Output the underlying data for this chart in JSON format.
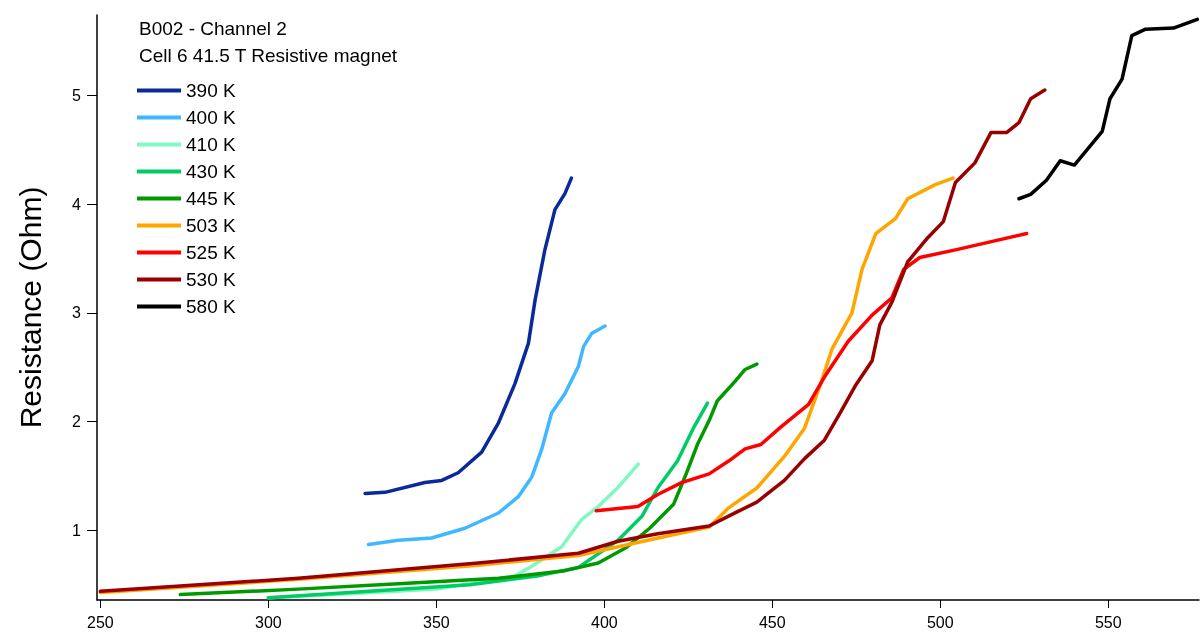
{
  "chart_data": {
    "type": "line",
    "title": "B002 - Channel 2",
    "subtitle": "Cell 6 41.5 T Resistive magnet",
    "ylabel": "Resistance (Ohm)",
    "xlim": [
      249,
      577
    ],
    "xticks": [
      250,
      300,
      350,
      400,
      450,
      500,
      550
    ],
    "ylim": [
      0.36,
      5.74
    ],
    "yticks": [
      1,
      2,
      3,
      4,
      5
    ],
    "grid": false,
    "legend": "top left",
    "marker": "none",
    "line_style": "solid",
    "series": [
      {
        "name": "390 K",
        "color": "#0a2a9a",
        "x": [
          328.8,
          334.7,
          346.6,
          351.6,
          356.5,
          363.5,
          368.5,
          373.4,
          377.4,
          379.4,
          382.3,
          385.3,
          388.3,
          390.2
        ],
        "values": [
          1.34,
          1.35,
          1.44,
          1.46,
          1.53,
          1.72,
          1.99,
          2.35,
          2.72,
          3.12,
          3.58,
          3.95,
          4.1,
          4.24
        ]
      },
      {
        "name": "400 K",
        "color": "#40b8ff",
        "x": [
          329.8,
          338.7,
          348.6,
          358.5,
          368.5,
          374.4,
          378.4,
          381.3,
          384.3,
          388.3,
          392.3,
          393.8,
          396.2,
          400.2
        ],
        "values": [
          0.87,
          0.91,
          0.93,
          1.02,
          1.16,
          1.31,
          1.49,
          1.74,
          2.08,
          2.26,
          2.51,
          2.69,
          2.81,
          2.88
        ]
      },
      {
        "name": "410 K",
        "color": "#80f8c0",
        "x": [
          300,
          320,
          350,
          373.4,
          378.4,
          387.3,
          393.2,
          398.2,
          404.2,
          410.1
        ],
        "values": [
          0.38,
          0.41,
          0.46,
          0.58,
          0.67,
          0.85,
          1.1,
          1.22,
          1.4,
          1.61
        ]
      },
      {
        "name": "430 K",
        "color": "#00cc66",
        "x": [
          300,
          330,
          360,
          380,
          392.3,
          404.1,
          411.2,
          415.9,
          421.8,
          426.5,
          430.7
        ],
        "values": [
          0.38,
          0.44,
          0.5,
          0.58,
          0.66,
          0.91,
          1.13,
          1.39,
          1.64,
          1.94,
          2.17
        ]
      },
      {
        "name": "445 K",
        "color": "#009900",
        "x": [
          273.8,
          308.9,
          338.7,
          368.5,
          388.3,
          398.2,
          406.4,
          413.5,
          420.6,
          424.1,
          427.7,
          431.2,
          433.6,
          438.9,
          441.9,
          445.4
        ],
        "values": [
          0.41,
          0.46,
          0.51,
          0.56,
          0.63,
          0.7,
          0.84,
          1.02,
          1.24,
          1.5,
          1.79,
          2.01,
          2.19,
          2.37,
          2.48,
          2.53
        ]
      },
      {
        "name": "503 K",
        "color": "#ffa500",
        "x": [
          250,
          308.9,
          362.5,
          392.3,
          416,
          431.2,
          437.1,
          445.4,
          453.6,
          459.6,
          464.3,
          467.8,
          473.7,
          476.7,
          480.8,
          486.7,
          490.3,
          498.5,
          503.8
        ],
        "values": [
          0.43,
          0.55,
          0.68,
          0.77,
          0.93,
          1.03,
          1.21,
          1.39,
          1.68,
          1.94,
          2.34,
          2.67,
          3.0,
          3.4,
          3.73,
          3.87,
          4.05,
          4.18,
          4.24
        ]
      },
      {
        "name": "525 K",
        "color": "#ff0000",
        "x": [
          397.6,
          410,
          415.9,
          423,
          431.2,
          437.1,
          441.9,
          446.6,
          452.5,
          460.8,
          465.5,
          472.6,
          479.7,
          485.6,
          489.1,
          493.9,
          504.5,
          525.7
        ],
        "values": [
          1.18,
          1.22,
          1.33,
          1.44,
          1.52,
          1.64,
          1.75,
          1.79,
          1.95,
          2.16,
          2.41,
          2.74,
          2.98,
          3.14,
          3.4,
          3.51,
          3.58,
          3.73
        ]
      },
      {
        "name": "530 K",
        "color": "#990000",
        "x": [
          250,
          308.9,
          362.5,
          392.3,
          404.1,
          415.9,
          431.2,
          439.5,
          445.4,
          453.6,
          459.6,
          465.5,
          470.2,
          474.9,
          479.7,
          482,
          485.6,
          490.3,
          496.2,
          500.9,
          504.5,
          510.3,
          515.1,
          519.8,
          523.4,
          526.9,
          531.1
        ],
        "values": [
          0.44,
          0.56,
          0.7,
          0.79,
          0.9,
          0.97,
          1.04,
          1.17,
          1.26,
          1.46,
          1.66,
          1.83,
          2.08,
          2.34,
          2.56,
          2.89,
          3.1,
          3.47,
          3.69,
          3.84,
          4.2,
          4.38,
          4.66,
          4.66,
          4.75,
          4.97,
          5.05
        ]
      },
      {
        "name": "580 K",
        "color": "#000000",
        "x": [
          523.4,
          526.9,
          531.6,
          535.7,
          539.9,
          543.4,
          548.2,
          550.5,
          554.1,
          557,
          561.1,
          569.4,
          576.5
        ],
        "values": [
          4.05,
          4.09,
          4.22,
          4.4,
          4.36,
          4.49,
          4.67,
          4.97,
          5.15,
          5.55,
          5.61,
          5.62,
          5.7
        ]
      }
    ]
  }
}
